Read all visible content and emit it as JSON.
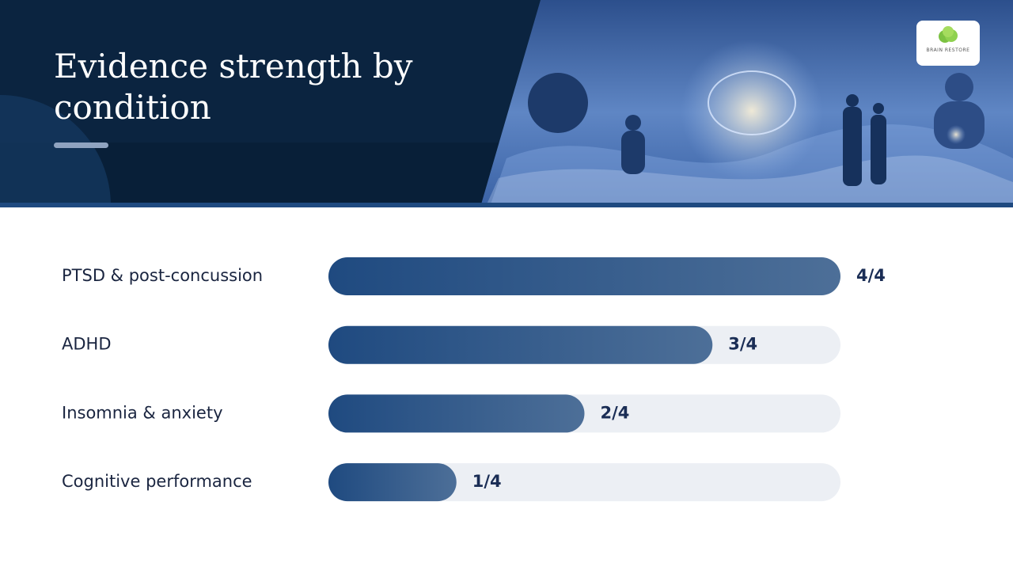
{
  "logo": "BRAIN RESTORE",
  "chart_data": {
    "type": "bar",
    "orientation": "horizontal",
    "title": "Evidence strength by condition",
    "categories": [
      "PTSD & post-concussion",
      "ADHD",
      "Insomnia & anxiety",
      "Cognitive performance"
    ],
    "values": [
      4,
      3,
      2,
      1
    ],
    "value_labels": [
      "4/4",
      "3/4",
      "2/4",
      "1/4"
    ],
    "xlim": [
      0,
      4
    ],
    "color": "#1f4a80"
  }
}
